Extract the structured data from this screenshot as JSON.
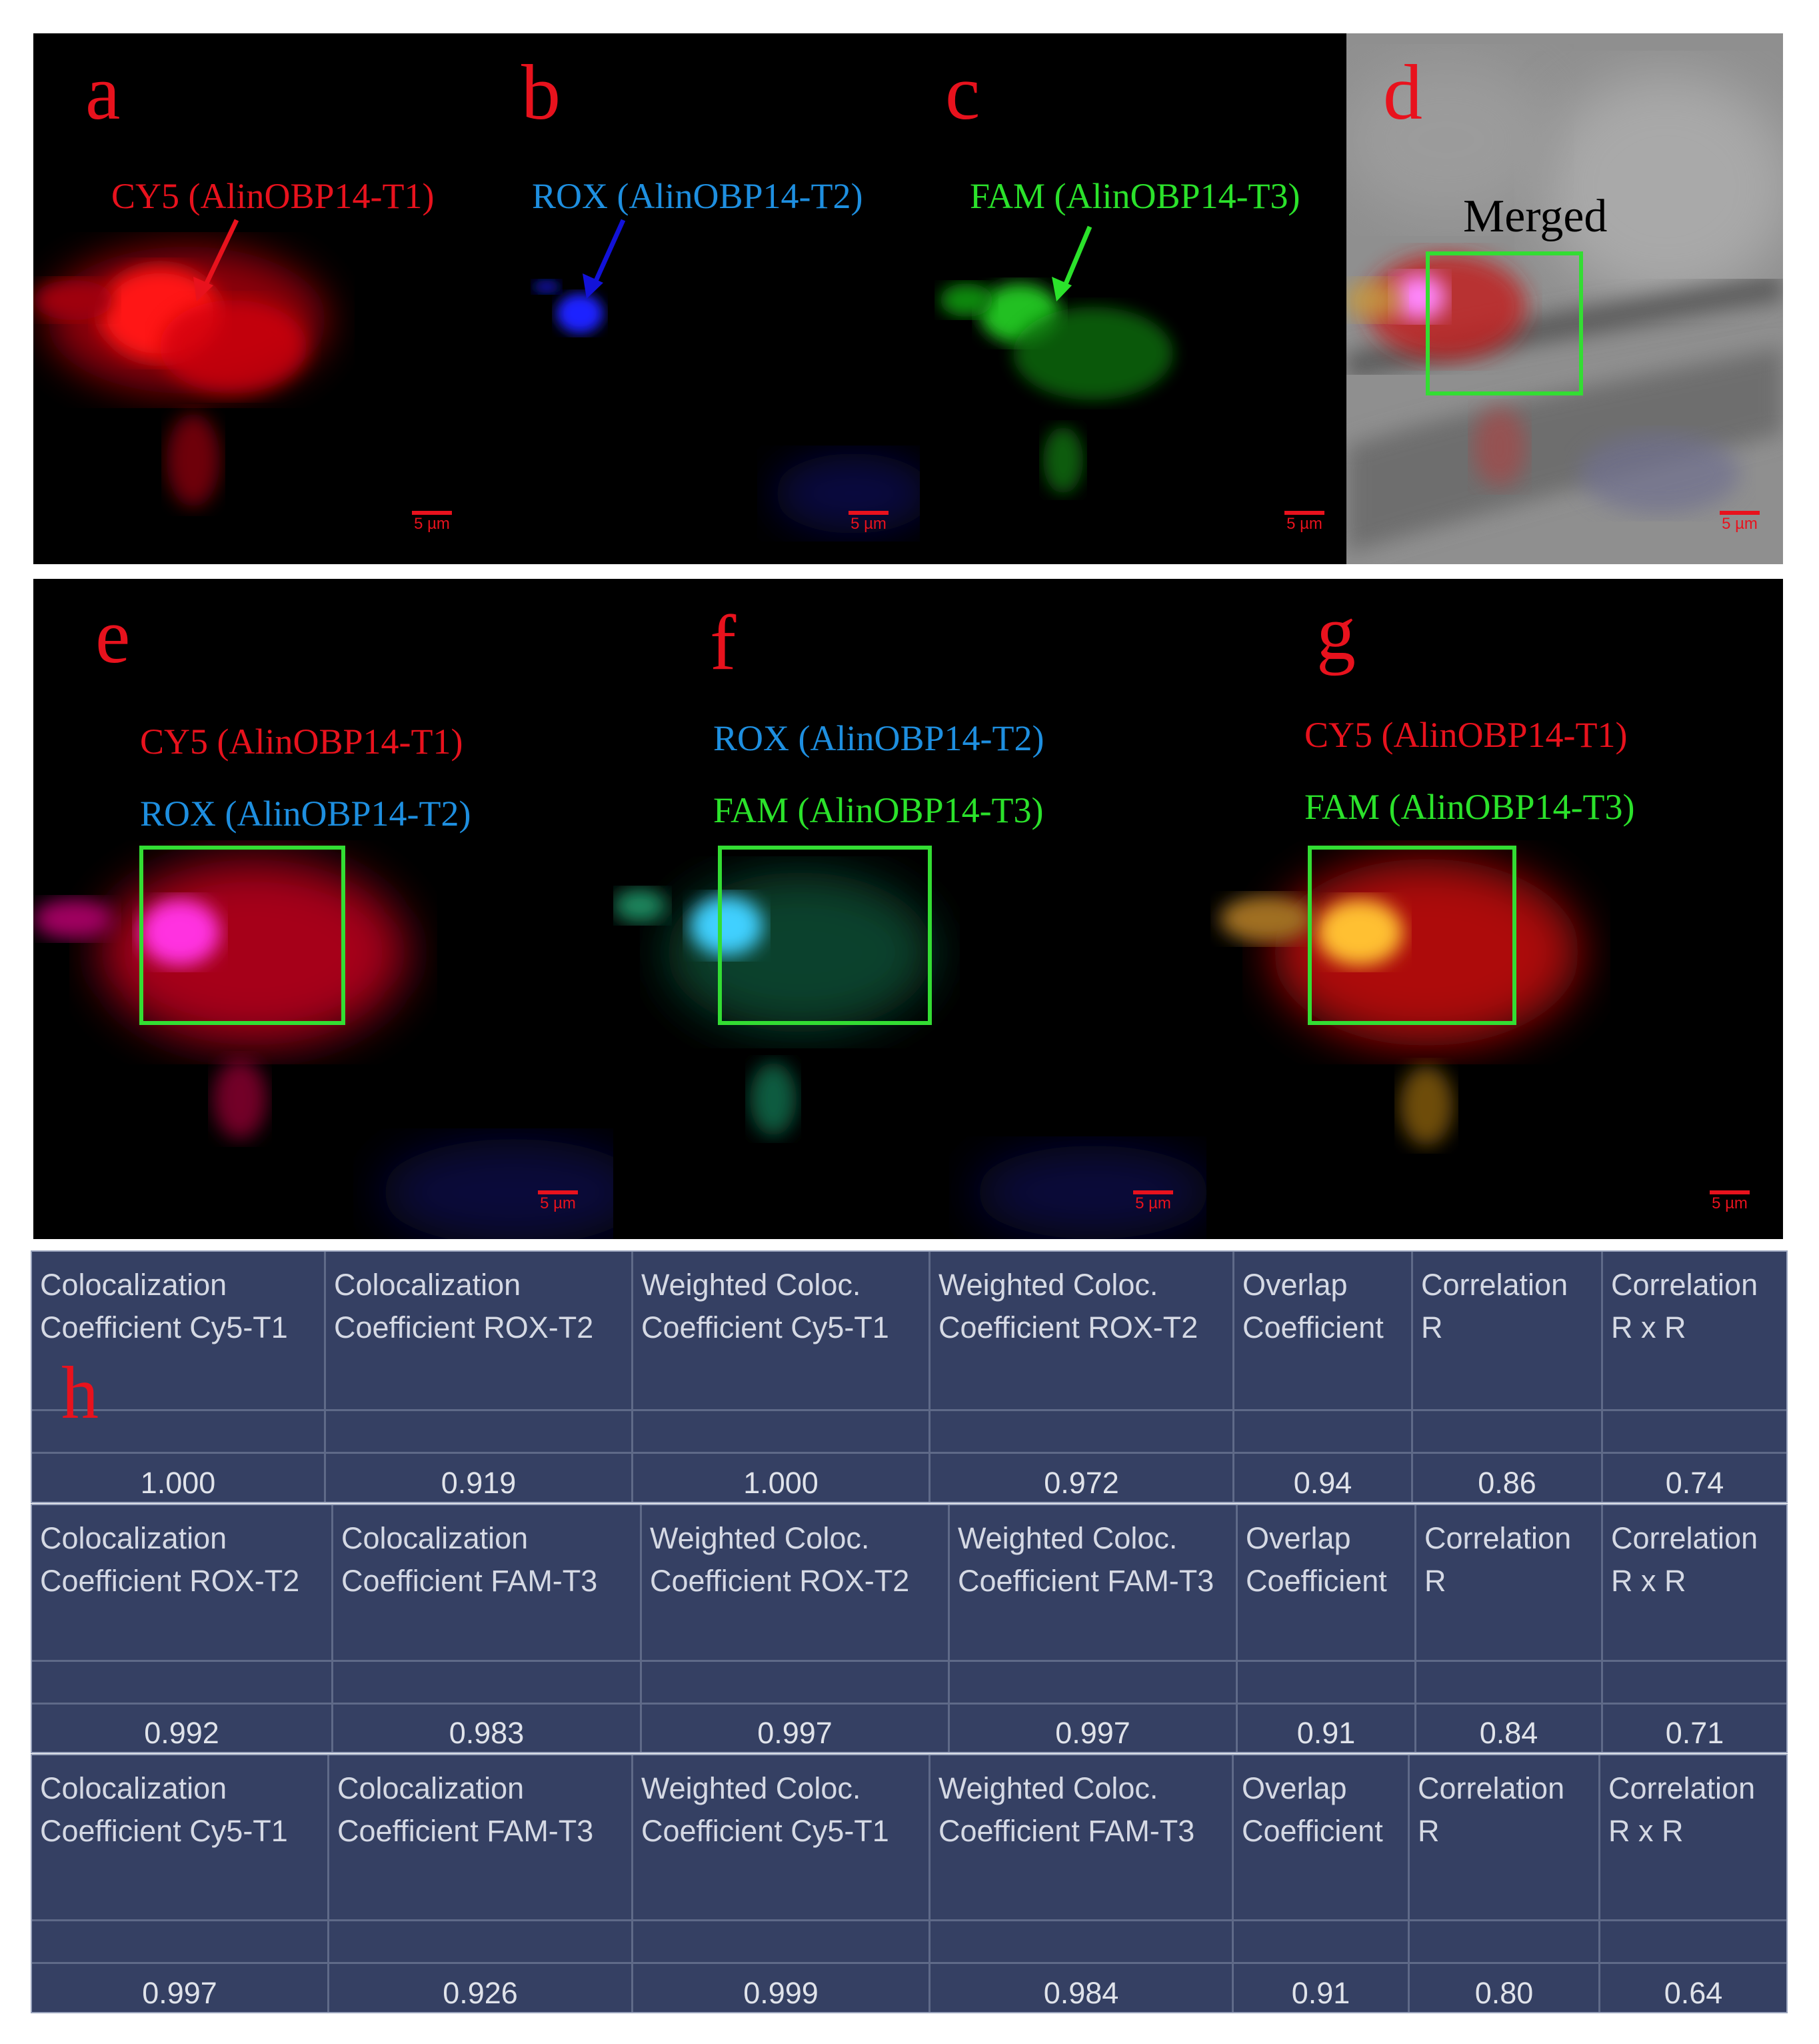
{
  "panels": {
    "a": {
      "letter": "a",
      "label": "CY5 (AlinOBP14-T1)",
      "scale": "5 µm"
    },
    "b": {
      "letter": "b",
      "label": "ROX (AlinOBP14-T2)",
      "scale": "5 µm"
    },
    "c": {
      "letter": "c",
      "label": "FAM (AlinOBP14-T3)",
      "scale": "5 µm"
    },
    "d": {
      "letter": "d",
      "label": "Merged",
      "scale": "5 µm"
    },
    "e": {
      "letter": "e",
      "label1": "CY5 (AlinOBP14-T1)",
      "label2": "ROX (AlinOBP14-T2)",
      "scale": "5 µm"
    },
    "f": {
      "letter": "f",
      "label1": "ROX (AlinOBP14-T2)",
      "label2": "FAM (AlinOBP14-T3)",
      "scale": "5 µm"
    },
    "g": {
      "letter": "g",
      "label1": "CY5 (AlinOBP14-T1)",
      "label2": "FAM (AlinOBP14-T3)",
      "scale": "5 µm"
    }
  },
  "h_letter": "h",
  "colors": {
    "cy5": "#e8121d",
    "rox": "#1e8fe0",
    "fam": "#2be22b",
    "box": "#33dd33"
  },
  "tables": [
    {
      "headers": [
        [
          "Colocalization",
          "Coefficient Cy5-T1"
        ],
        [
          "Colocalization",
          "Coefficient ROX-T2"
        ],
        [
          "Weighted Coloc.",
          "Coefficient Cy5-T1"
        ],
        [
          "Weighted Coloc.",
          "Coefficient ROX-T2"
        ],
        [
          "Overlap",
          "Coefficient"
        ],
        [
          "Correlation",
          "R"
        ],
        [
          "Correlation",
          "R x R"
        ]
      ],
      "values": [
        "1.000",
        "0.919",
        "1.000",
        "0.972",
        "0.94",
        "0.86",
        "0.74"
      ]
    },
    {
      "headers": [
        [
          "Colocalization",
          "Coefficient ROX-T2"
        ],
        [
          "Colocalization",
          "Coefficient FAM-T3"
        ],
        [
          "Weighted Coloc.",
          "Coefficient ROX-T2"
        ],
        [
          "Weighted Coloc.",
          "Coefficient FAM-T3"
        ],
        [
          "Overlap",
          "Coefficient"
        ],
        [
          "Correlation",
          "R"
        ],
        [
          "Correlation",
          "R x R"
        ]
      ],
      "values": [
        "0.992",
        "0.983",
        "0.997",
        "0.997",
        "0.91",
        "0.84",
        "0.71"
      ]
    },
    {
      "headers": [
        [
          "Colocalization",
          "Coefficient Cy5-T1"
        ],
        [
          "Colocalization",
          "Coefficient FAM-T3"
        ],
        [
          "Weighted Coloc.",
          "Coefficient Cy5-T1"
        ],
        [
          "Weighted Coloc.",
          "Coefficient FAM-T3"
        ],
        [
          "Overlap",
          "Coefficient"
        ],
        [
          "Correlation",
          "R"
        ],
        [
          "Correlation",
          "R x R"
        ]
      ],
      "values": [
        "0.997",
        "0.926",
        "0.999",
        "0.984",
        "0.91",
        "0.80",
        "0.64"
      ]
    }
  ]
}
